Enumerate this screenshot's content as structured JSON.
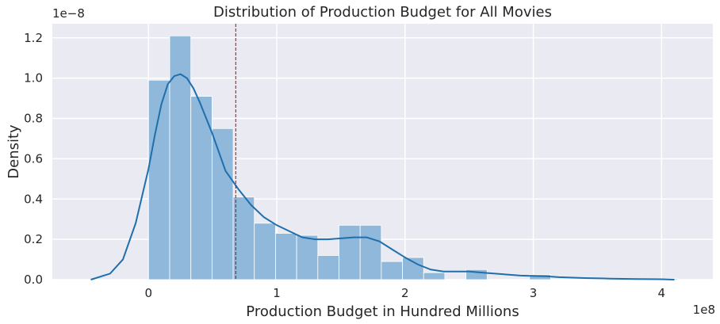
{
  "chart_data": {
    "type": "bar",
    "title": "Distribution of Production Budget for All Movies",
    "xlabel": "Production Budget in Hundred Millions",
    "ylabel": "Density",
    "x_offset_label": "1e8",
    "y_offset_label": "1e−8",
    "xlim": [
      -0.75,
      4.4
    ],
    "ylim": [
      0,
      1.27
    ],
    "x_ticks": [
      0,
      1,
      2,
      3,
      4
    ],
    "x_tick_labels": [
      "0",
      "1",
      "2",
      "3",
      "4"
    ],
    "y_ticks": [
      0,
      0.2,
      0.4,
      0.6,
      0.8,
      1.0,
      1.2
    ],
    "y_tick_labels": [
      "0.0",
      "0.2",
      "0.4",
      "0.6",
      "0.8",
      "1.0",
      "1.2"
    ],
    "grid": true,
    "bin_width": 0.165,
    "histogram": {
      "bin_starts": [
        0,
        0.165,
        0.33,
        0.495,
        0.66,
        0.825,
        0.99,
        1.155,
        1.32,
        1.485,
        1.65,
        1.815,
        1.98,
        2.145,
        2.31,
        2.475,
        2.64,
        2.805,
        2.97,
        3.135,
        3.3,
        3.465,
        3.63,
        3.795,
        3.96
      ],
      "densities": [
        0.99,
        1.21,
        0.91,
        0.75,
        0.41,
        0.28,
        0.23,
        0.22,
        0.12,
        0.27,
        0.27,
        0.09,
        0.11,
        0.035,
        0,
        0.05,
        0,
        0,
        0.025,
        0,
        0,
        0,
        0,
        0,
        0.005
      ],
      "color": "#8fb8db"
    },
    "kde": {
      "x": [
        -0.45,
        -0.3,
        -0.2,
        -0.1,
        0.0,
        0.05,
        0.1,
        0.15,
        0.2,
        0.25,
        0.3,
        0.35,
        0.4,
        0.5,
        0.6,
        0.7,
        0.8,
        0.9,
        1.0,
        1.1,
        1.2,
        1.3,
        1.4,
        1.5,
        1.6,
        1.7,
        1.8,
        1.9,
        2.0,
        2.1,
        2.2,
        2.3,
        2.5,
        2.6,
        2.7,
        2.8,
        2.9,
        3.0,
        3.1,
        3.2,
        3.4,
        3.6,
        3.8,
        4.0,
        4.1
      ],
      "y": [
        0.0,
        0.03,
        0.1,
        0.28,
        0.55,
        0.72,
        0.87,
        0.97,
        1.01,
        1.02,
        1.0,
        0.95,
        0.88,
        0.72,
        0.54,
        0.45,
        0.37,
        0.31,
        0.27,
        0.24,
        0.21,
        0.2,
        0.2,
        0.205,
        0.21,
        0.21,
        0.19,
        0.15,
        0.11,
        0.075,
        0.05,
        0.04,
        0.04,
        0.035,
        0.03,
        0.025,
        0.02,
        0.018,
        0.017,
        0.012,
        0.008,
        0.005,
        0.003,
        0.002,
        0.0
      ],
      "color": "#1f6fad"
    },
    "reference_line": {
      "x": 0.68,
      "color": "#c00000",
      "style": "dashed"
    },
    "colors": {
      "background": "#eaeaf2",
      "grid": "#ffffff",
      "text": "#262626"
    }
  }
}
